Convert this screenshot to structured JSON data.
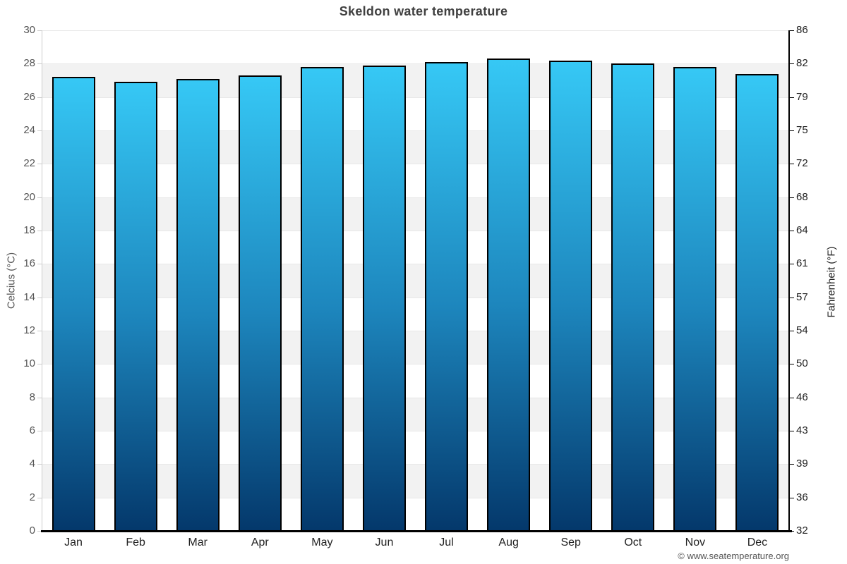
{
  "header": {
    "title": "Skeldon water temperature"
  },
  "footer": {
    "credit": "© www.seatemperature.org"
  },
  "chart_data": {
    "type": "bar",
    "title": "Skeldon water temperature",
    "categories": [
      "Jan",
      "Feb",
      "Mar",
      "Apr",
      "May",
      "Jun",
      "Jul",
      "Aug",
      "Sep",
      "Oct",
      "Nov",
      "Dec"
    ],
    "values": [
      27.2,
      26.9,
      27.1,
      27.3,
      27.8,
      27.9,
      28.1,
      28.3,
      28.2,
      28.0,
      27.8,
      27.4
    ],
    "unit": "°C",
    "ylabel_left": "Celcius (°C)",
    "ylabel_right": "Fahrenheit (°F)",
    "yticks_celsius": [
      30,
      28,
      26,
      24,
      22,
      20,
      18,
      16,
      14,
      12,
      10,
      8,
      6,
      4,
      2,
      0
    ],
    "yticks_fahrenheit": [
      86,
      82,
      79,
      75,
      72,
      68,
      64,
      61,
      57,
      54,
      50,
      46,
      43,
      39,
      36,
      32
    ],
    "ylim": [
      0,
      30
    ],
    "xlabel": "",
    "legend": "none",
    "grid": "alternating horizontal bands every 2°C",
    "colors": {
      "bar_gradient_top": "#36c8f5",
      "bar_gradient_mid": "#1d86bd",
      "bar_gradient_bottom": "#04386b",
      "bar_border": "#000000",
      "band_shaded": "#f2f2f2",
      "band_plain": "#ffffff",
      "gridline": "#e8e8e8",
      "left_axis_line": "#cccccc",
      "right_axis_line": "#000000",
      "bottom_axis_line": "#000000",
      "title_text": "#404040",
      "axis_text_dark": "#222222",
      "axis_text_muted": "#555555"
    }
  }
}
